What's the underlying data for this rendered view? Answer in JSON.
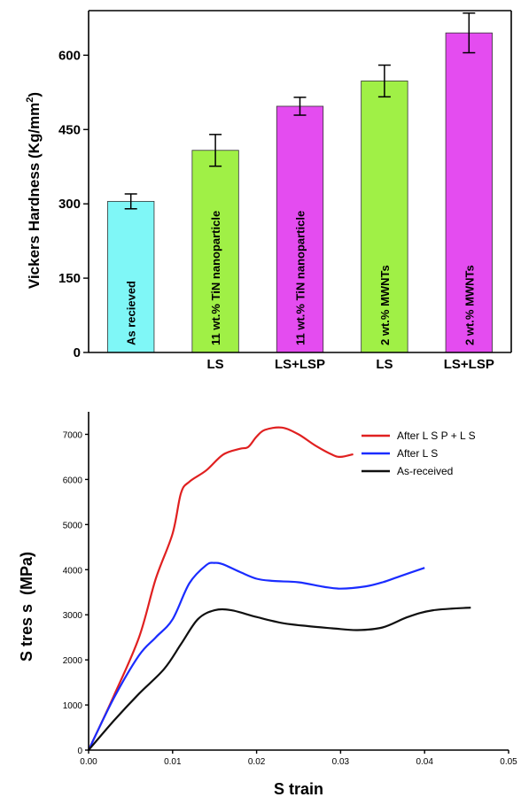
{
  "top_chart": {
    "ylabel_main": "Vickers Hardness (Kg/mm",
    "ylabel_sup": "2",
    "ylabel_end": ")",
    "chart_data": {
      "type": "bar",
      "ylim": [
        0,
        690
      ],
      "yticks": [
        0,
        150,
        300,
        450,
        600
      ],
      "bars": [
        {
          "label": "As recieved",
          "value": 305,
          "error": 15,
          "color": "#7ff7f7",
          "group": ""
        },
        {
          "label": "11 wt.% TiN nanoparticle",
          "value": 408,
          "error": 32,
          "color": "#a0f046",
          "group": "LS"
        },
        {
          "label": "11 wt.% TiN nanoparticle",
          "value": 497,
          "error": 18,
          "color": "#e44cf0",
          "group": "LS+LSP"
        },
        {
          "label": "2 wt.% MWNTs",
          "value": 548,
          "error": 32,
          "color": "#a0f046",
          "group": "LS"
        },
        {
          "label": "2 wt.% MWNTs",
          "value": 645,
          "error": 40,
          "color": "#e44cf0",
          "group": "LS+LSP"
        }
      ]
    }
  },
  "bottom_chart": {
    "xlabel": "S train",
    "ylabel": "S tres s  (MPa)",
    "chart_data": {
      "type": "line",
      "xlim": [
        0,
        0.05
      ],
      "ylim": [
        0,
        7500
      ],
      "xticks": [
        "0.00",
        "0.01",
        "0.02",
        "0.03",
        "0.04",
        "0.05"
      ],
      "yticks": [
        "0",
        "1000",
        "2000",
        "3000",
        "4000",
        "5000",
        "6000",
        "7000"
      ],
      "series": [
        {
          "name": "After L S P + L S",
          "color": "#e02020",
          "x": [
            0,
            0.003,
            0.006,
            0.008,
            0.01,
            0.011,
            0.012,
            0.014,
            0.016,
            0.018,
            0.019,
            0.02,
            0.021,
            0.023,
            0.025,
            0.027,
            0.029,
            0.03,
            0.0315
          ],
          "y": [
            0,
            1200,
            2500,
            3800,
            4800,
            5700,
            5950,
            6200,
            6550,
            6680,
            6720,
            6950,
            7100,
            7150,
            7000,
            6750,
            6550,
            6500,
            6560
          ]
        },
        {
          "name": "After L S",
          "color": "#1a2cff",
          "x": [
            0,
            0.003,
            0.006,
            0.008,
            0.01,
            0.012,
            0.014,
            0.015,
            0.016,
            0.018,
            0.02,
            0.022,
            0.025,
            0.028,
            0.03,
            0.033,
            0.035,
            0.037,
            0.04
          ],
          "y": [
            0,
            1150,
            2100,
            2500,
            2900,
            3700,
            4100,
            4150,
            4120,
            3950,
            3800,
            3750,
            3720,
            3620,
            3580,
            3630,
            3720,
            3850,
            4040
          ]
        },
        {
          "name": "As-received",
          "color": "#101010",
          "x": [
            0,
            0.003,
            0.006,
            0.009,
            0.011,
            0.013,
            0.015,
            0.017,
            0.02,
            0.023,
            0.026,
            0.029,
            0.032,
            0.035,
            0.038,
            0.041,
            0.0455
          ],
          "y": [
            0,
            650,
            1250,
            1800,
            2350,
            2900,
            3100,
            3100,
            2950,
            2820,
            2750,
            2700,
            2660,
            2720,
            2950,
            3100,
            3160
          ]
        }
      ]
    }
  }
}
